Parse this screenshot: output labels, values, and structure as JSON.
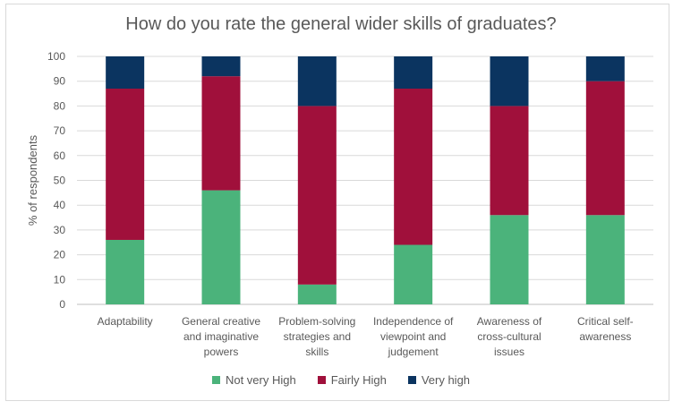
{
  "chart_data": {
    "type": "stacked_bar",
    "title": "How do you rate the general wider skills of graduates?",
    "xlabel": "",
    "ylabel": "% of respondents",
    "ylim": [
      0,
      100
    ],
    "yticks": [
      0,
      10,
      20,
      30,
      40,
      50,
      60,
      70,
      80,
      90,
      100
    ],
    "categories": [
      [
        "Adaptability"
      ],
      [
        "General creative",
        "and imaginative",
        "powers"
      ],
      [
        "Problem-solving",
        "strategies and",
        "skills"
      ],
      [
        "Independence of",
        "viewpoint and",
        "judgement"
      ],
      [
        "Awareness of",
        "cross-cultural",
        "issues"
      ],
      [
        "Critical self-",
        "awareness"
      ]
    ],
    "series": [
      {
        "name": "Not very High",
        "color": "#4bb37b",
        "values": [
          26,
          46,
          8,
          24,
          36,
          36
        ]
      },
      {
        "name": "Fairly High",
        "color": "#a0103b",
        "values": [
          61,
          46,
          72,
          63,
          44,
          54
        ]
      },
      {
        "name": "Very high",
        "color": "#0b3460",
        "values": [
          13,
          8,
          20,
          13,
          20,
          10
        ]
      }
    ],
    "grid": true,
    "legend_position": "bottom"
  }
}
